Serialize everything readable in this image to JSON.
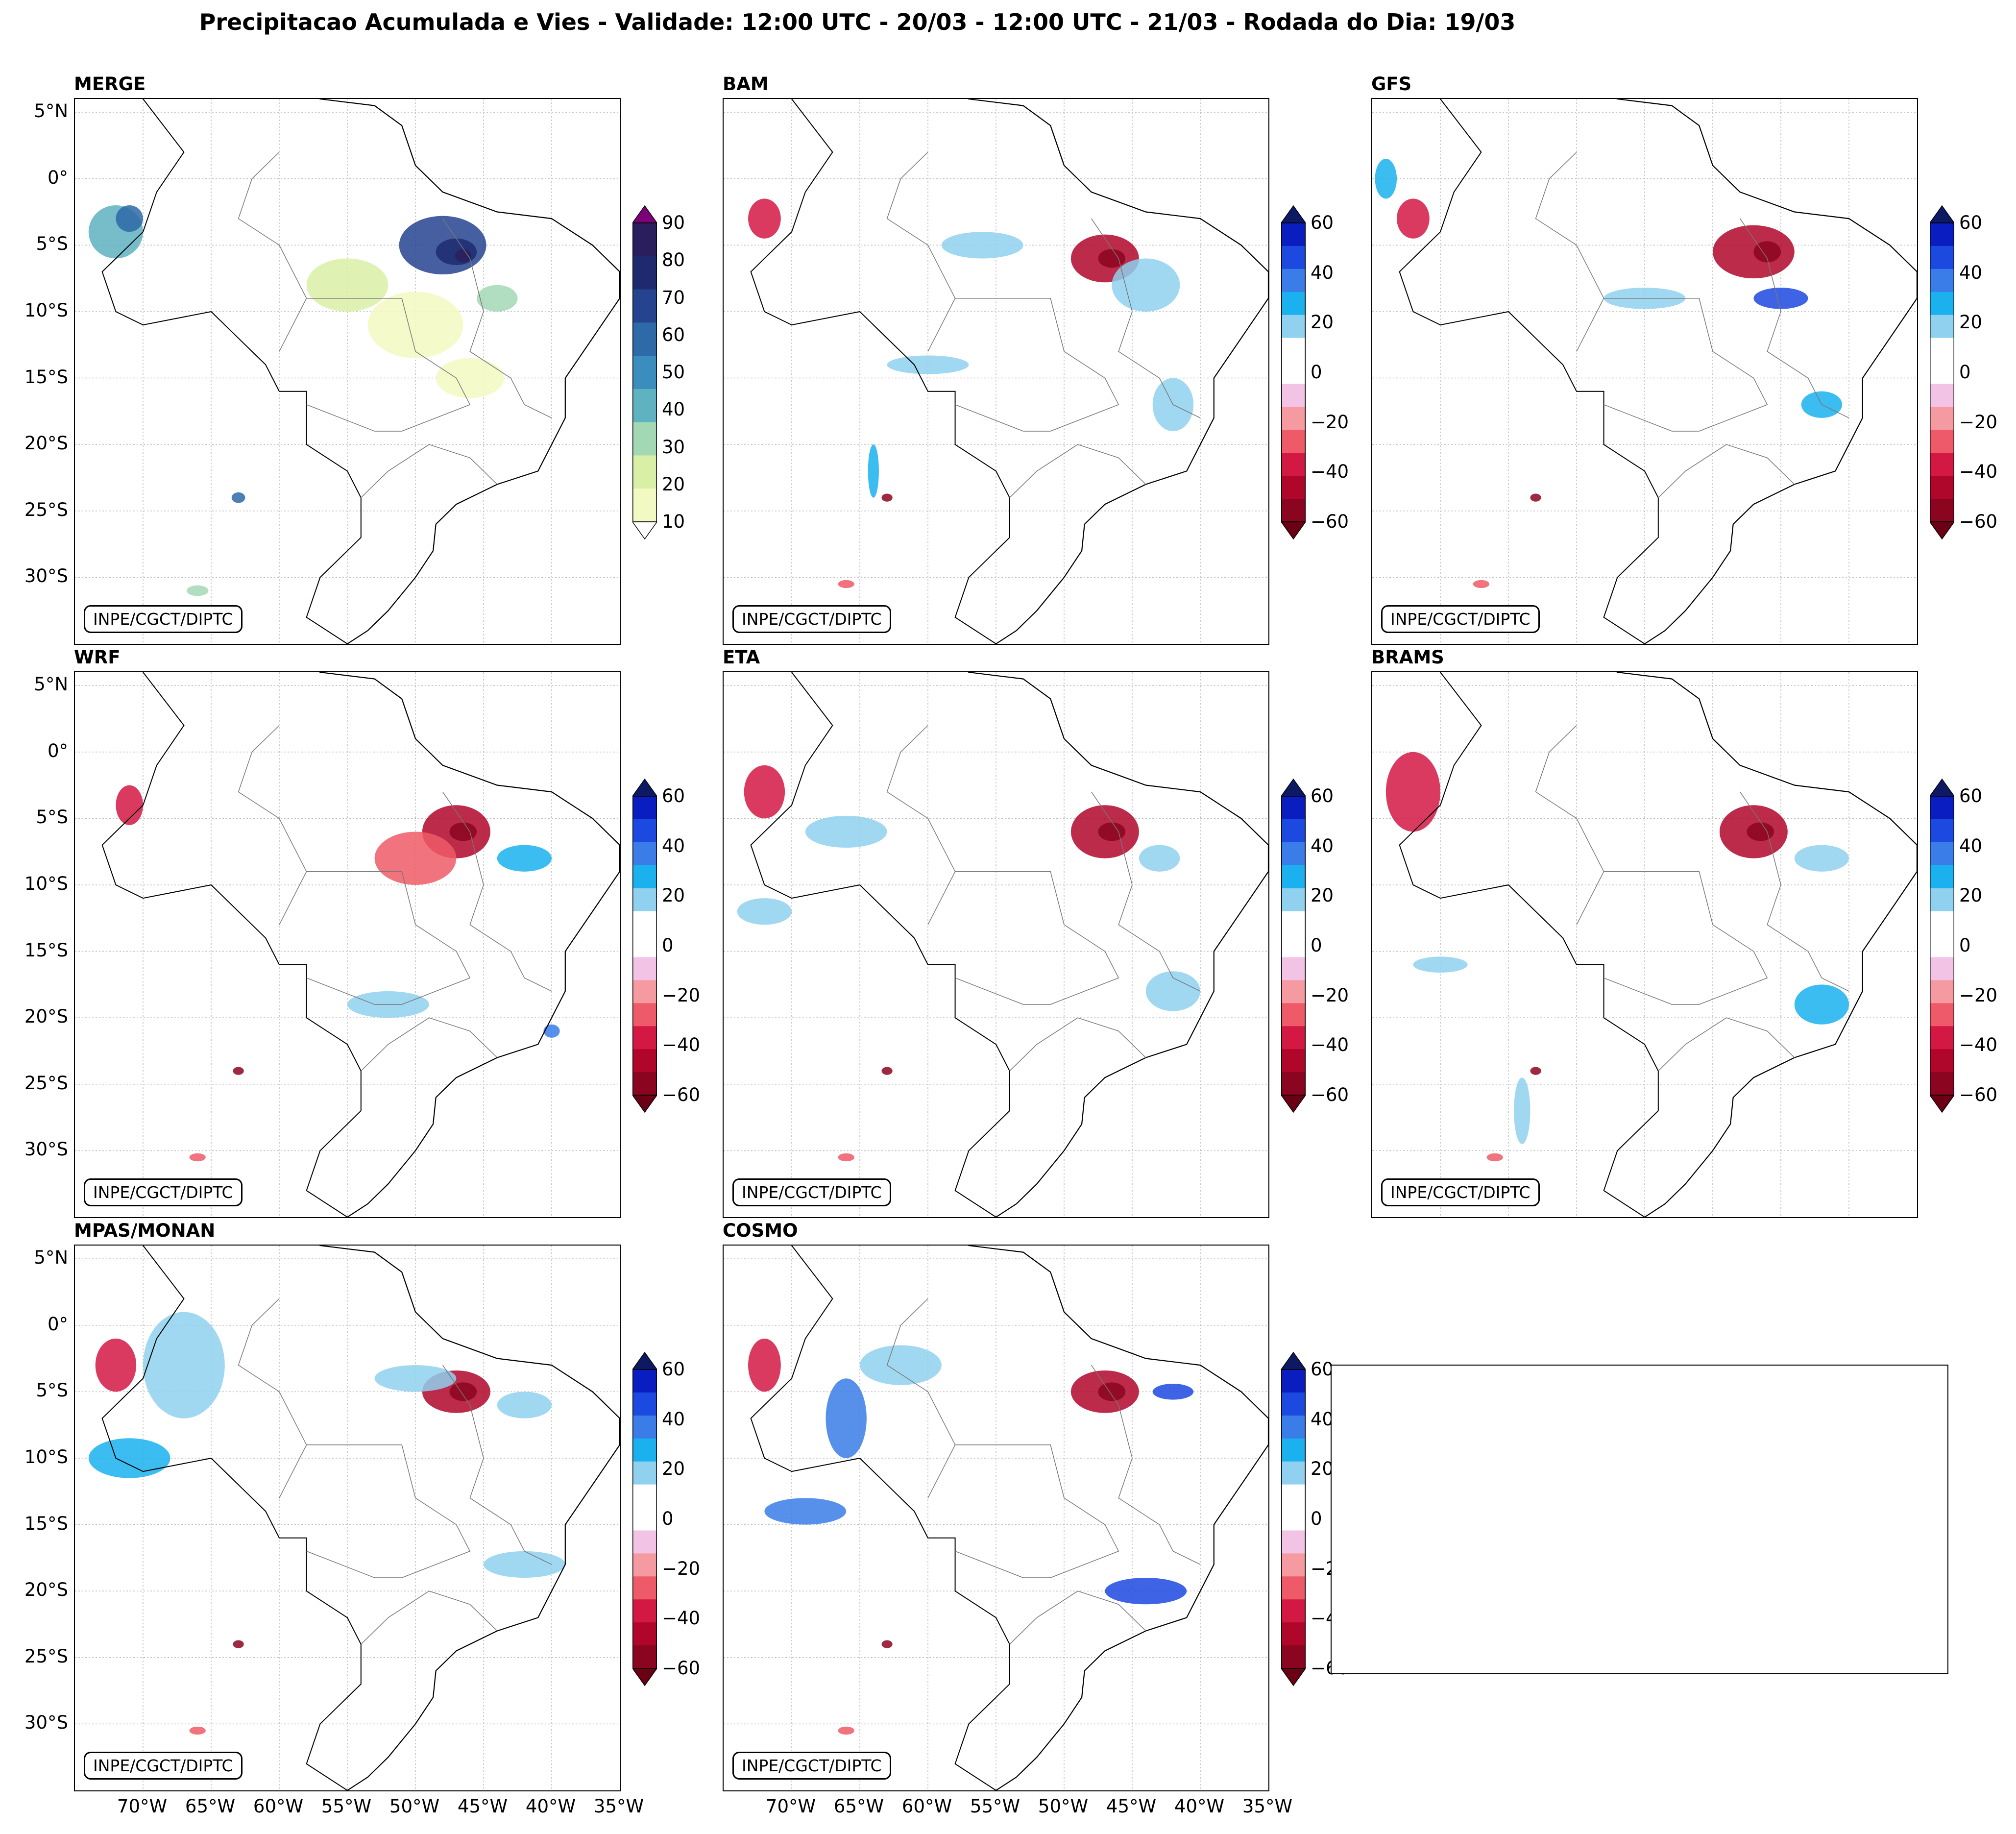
{
  "title": "Precipitacao Acumulada e Vies - Validade: 12:00 UTC - 20/03 - 12:00 UTC - 21/03 - Rodada do Dia: 19/03",
  "credit": "INPE/CGCT/DIPTC",
  "panels": [
    {
      "id": "merge",
      "name": "MERGE",
      "type": "precip"
    },
    {
      "id": "bam",
      "name": "BAM",
      "type": "bias"
    },
    {
      "id": "gfs",
      "name": "GFS",
      "type": "bias"
    },
    {
      "id": "wrf",
      "name": "WRF",
      "type": "bias"
    },
    {
      "id": "eta",
      "name": "ETA",
      "type": "bias"
    },
    {
      "id": "brams",
      "name": "BRAMS",
      "type": "bias"
    },
    {
      "id": "mpas",
      "name": "MPAS/MONAN",
      "type": "bias"
    },
    {
      "id": "cosmo",
      "name": "COSMO",
      "type": "bias"
    }
  ],
  "lat_labels": [
    "5°N",
    "0°",
    "5°S",
    "10°S",
    "15°S",
    "20°S",
    "25°S",
    "30°S"
  ],
  "lon_labels": [
    "70°W",
    "65°W",
    "60°W",
    "55°W",
    "50°W",
    "45°W",
    "40°W",
    "35°W"
  ],
  "precip_colorbar": {
    "ticks": [
      "90",
      "80",
      "70",
      "60",
      "50",
      "40",
      "30",
      "20",
      "10"
    ],
    "colors": [
      "#2b1e5c",
      "#1d2b6e",
      "#25438f",
      "#2e69a8",
      "#3a8dbd",
      "#5fb2c0",
      "#a3d8b5",
      "#d9efa6",
      "#f3f9c2"
    ],
    "extend_top": "#7a0177"
  },
  "bias_colorbar": {
    "ticks": [
      "60",
      "40",
      "20",
      "0",
      "−20",
      "−40",
      "−60"
    ],
    "colors": [
      "#0a1dc0",
      "#1c49e0",
      "#3a7de8",
      "#1ab1ee",
      "#8fd1ee",
      "#ffffff",
      "#ffffff",
      "#f3c3e6",
      "#f59aa0",
      "#ee5a67",
      "#d31844",
      "#b0062a",
      "#8c0520"
    ],
    "extend_top": "#0d1a63",
    "extend_bottom": "#6b0014"
  },
  "chart_data": {
    "type": "map-grid",
    "title": "Precipitacao Acumulada e Vies - Validade: 12:00 UTC - 20/03 - 12:00 UTC - 21/03 - Rodada do Dia: 19/03",
    "domain": {
      "lon_range": [
        -75,
        -35
      ],
      "lat_range": [
        -35,
        6
      ]
    },
    "precip_levels": [
      10,
      20,
      30,
      40,
      50,
      60,
      70,
      80,
      90
    ],
    "bias_levels": [
      -60,
      -50,
      -40,
      -30,
      -20,
      -10,
      0,
      10,
      20,
      30,
      40,
      50,
      60
    ]
  }
}
